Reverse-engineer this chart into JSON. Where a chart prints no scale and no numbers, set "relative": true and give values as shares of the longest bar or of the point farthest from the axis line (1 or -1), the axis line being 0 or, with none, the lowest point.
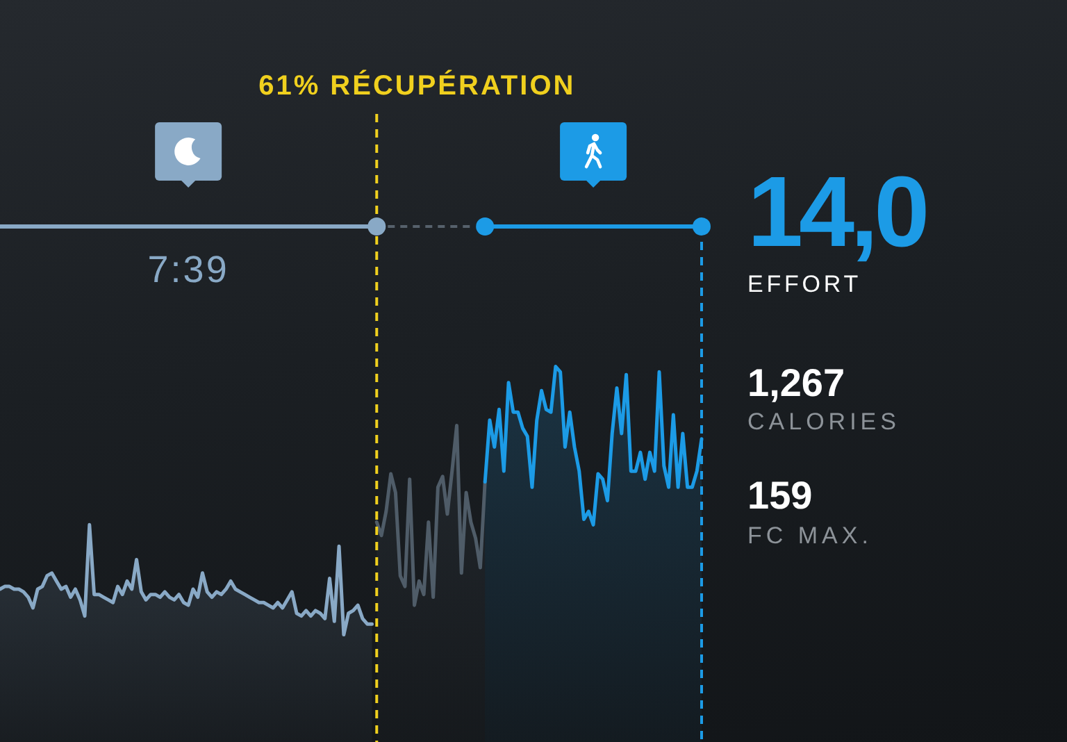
{
  "chart_data": {
    "type": "area",
    "relative": true,
    "tick_labels": false,
    "categories": [
      null,
      null,
      null,
      null,
      null,
      null,
      null,
      null,
      null,
      null,
      null,
      null,
      null,
      null,
      null,
      null,
      null,
      null,
      null,
      null,
      null,
      null,
      null,
      null,
      null,
      null,
      null,
      null,
      null,
      null,
      null,
      null,
      null,
      null,
      null,
      null,
      null,
      null,
      null,
      null,
      null,
      null,
      null,
      null,
      null,
      null,
      null,
      null,
      null,
      null,
      null,
      null,
      null,
      null,
      null,
      null,
      null,
      null,
      null,
      null,
      null,
      null,
      null,
      null,
      null,
      null,
      null,
      null,
      null,
      null,
      null,
      null,
      null,
      null,
      null,
      null,
      null,
      null,
      null,
      null,
      null,
      null,
      null,
      null,
      null,
      null,
      null,
      null,
      null,
      null,
      null,
      null,
      null,
      null,
      null,
      null,
      null,
      null,
      null,
      null,
      null,
      null,
      null,
      null,
      null,
      null,
      null,
      null,
      null,
      null,
      null,
      null,
      null,
      null,
      null,
      null,
      null,
      null,
      null,
      null,
      null,
      null,
      null,
      null,
      null,
      null,
      null,
      null,
      null,
      null,
      null,
      null,
      null,
      null,
      null,
      null,
      null,
      null,
      null,
      null,
      null,
      null,
      null,
      null,
      null,
      null,
      null,
      null,
      null,
      null
    ],
    "series": [
      {
        "color": "#89a9c6",
        "values": [
          0.17,
          0.18,
          0.18,
          0.17,
          0.17,
          0.16,
          0.14,
          0.1,
          0.17,
          0.18,
          0.22,
          0.23,
          0.2,
          0.17,
          0.18,
          0.14,
          0.17,
          0.13,
          0.07,
          0.41,
          0.15,
          0.15,
          0.14,
          0.13,
          0.12,
          0.18,
          0.15,
          0.2,
          0.17,
          0.28,
          0.16,
          0.13,
          0.15,
          0.15,
          0.14,
          0.16,
          0.14,
          0.13,
          0.15,
          0.12,
          0.11,
          0.17,
          0.14,
          0.23,
          0.16,
          0.14,
          0.16,
          0.15,
          0.17,
          0.2,
          0.17,
          0.16,
          0.15,
          0.14,
          0.13,
          0.12,
          0.12,
          0.11,
          0.1,
          0.12,
          0.1,
          0.13,
          0.16,
          0.08,
          0.07,
          0.09,
          0.07,
          0.09,
          0.08,
          0.06,
          0.21,
          0.05,
          0.33,
          0.0,
          0.08,
          0.09,
          0.11,
          0.06,
          0.04,
          0.04,
          null,
          null,
          null,
          null,
          null,
          null,
          null,
          null,
          null,
          null,
          null,
          null,
          null,
          null,
          null,
          null,
          null,
          null,
          null,
          null,
          null,
          null,
          null,
          null,
          null,
          null,
          null,
          null,
          null,
          null,
          null,
          null,
          null,
          null,
          null,
          null,
          null,
          null,
          null,
          null,
          null,
          null,
          null,
          null,
          null,
          null,
          null,
          null,
          null,
          null,
          null,
          null,
          null,
          null,
          null,
          null,
          null,
          null,
          null,
          null,
          null,
          null,
          null,
          null,
          null,
          null,
          null,
          null,
          null,
          null
        ]
      },
      {
        "color": "#4f5c68",
        "values": [
          null,
          null,
          null,
          null,
          null,
          null,
          null,
          null,
          null,
          null,
          null,
          null,
          null,
          null,
          null,
          null,
          null,
          null,
          null,
          null,
          null,
          null,
          null,
          null,
          null,
          null,
          null,
          null,
          null,
          null,
          null,
          null,
          null,
          null,
          null,
          null,
          null,
          null,
          null,
          null,
          null,
          null,
          null,
          null,
          null,
          null,
          null,
          null,
          null,
          null,
          null,
          null,
          null,
          null,
          null,
          null,
          null,
          null,
          null,
          null,
          null,
          null,
          null,
          null,
          null,
          null,
          null,
          null,
          null,
          null,
          null,
          null,
          null,
          null,
          null,
          null,
          null,
          null,
          null,
          null,
          0.42,
          0.37,
          0.46,
          0.6,
          0.53,
          0.22,
          0.18,
          0.58,
          0.11,
          0.2,
          0.15,
          0.42,
          0.14,
          0.55,
          0.59,
          0.45,
          0.61,
          0.78,
          0.23,
          0.53,
          0.42,
          0.36,
          0.25,
          0.57,
          null,
          null,
          null,
          null,
          null,
          null,
          null,
          null,
          null,
          null,
          null,
          null,
          null,
          null,
          null,
          null,
          null,
          null,
          null,
          null,
          null,
          null,
          null,
          null,
          null,
          null,
          null,
          null,
          null,
          null,
          null,
          null,
          null,
          null,
          null,
          null,
          null,
          null,
          null,
          null,
          null,
          null,
          null,
          null,
          null,
          null
        ]
      },
      {
        "color": "#1c9be6",
        "values": [
          null,
          null,
          null,
          null,
          null,
          null,
          null,
          null,
          null,
          null,
          null,
          null,
          null,
          null,
          null,
          null,
          null,
          null,
          null,
          null,
          null,
          null,
          null,
          null,
          null,
          null,
          null,
          null,
          null,
          null,
          null,
          null,
          null,
          null,
          null,
          null,
          null,
          null,
          null,
          null,
          null,
          null,
          null,
          null,
          null,
          null,
          null,
          null,
          null,
          null,
          null,
          null,
          null,
          null,
          null,
          null,
          null,
          null,
          null,
          null,
          null,
          null,
          null,
          null,
          null,
          null,
          null,
          null,
          null,
          null,
          null,
          null,
          null,
          null,
          null,
          null,
          null,
          null,
          null,
          null,
          null,
          null,
          null,
          null,
          null,
          null,
          null,
          null,
          null,
          null,
          null,
          null,
          null,
          null,
          null,
          null,
          null,
          null,
          null,
          null,
          null,
          null,
          null,
          0.57,
          0.8,
          0.7,
          0.84,
          0.61,
          0.94,
          0.83,
          0.83,
          0.77,
          0.74,
          0.55,
          0.8,
          0.91,
          0.84,
          0.83,
          1.0,
          0.98,
          0.7,
          0.83,
          0.7,
          0.61,
          0.43,
          0.46,
          0.41,
          0.6,
          0.58,
          0.5,
          0.75,
          0.92,
          0.75,
          0.97,
          0.61,
          0.61,
          0.68,
          0.58,
          0.68,
          0.61,
          0.98,
          0.63,
          0.55,
          0.82,
          0.55,
          0.75,
          0.55,
          0.55,
          0.61,
          0.73
        ]
      }
    ],
    "annotations": [
      "61% RÉCUPÉRATION",
      "7:39",
      "14,0",
      "EFFORT",
      "1,267",
      "CALORIES",
      "159",
      "FC MAX."
    ]
  }
}
